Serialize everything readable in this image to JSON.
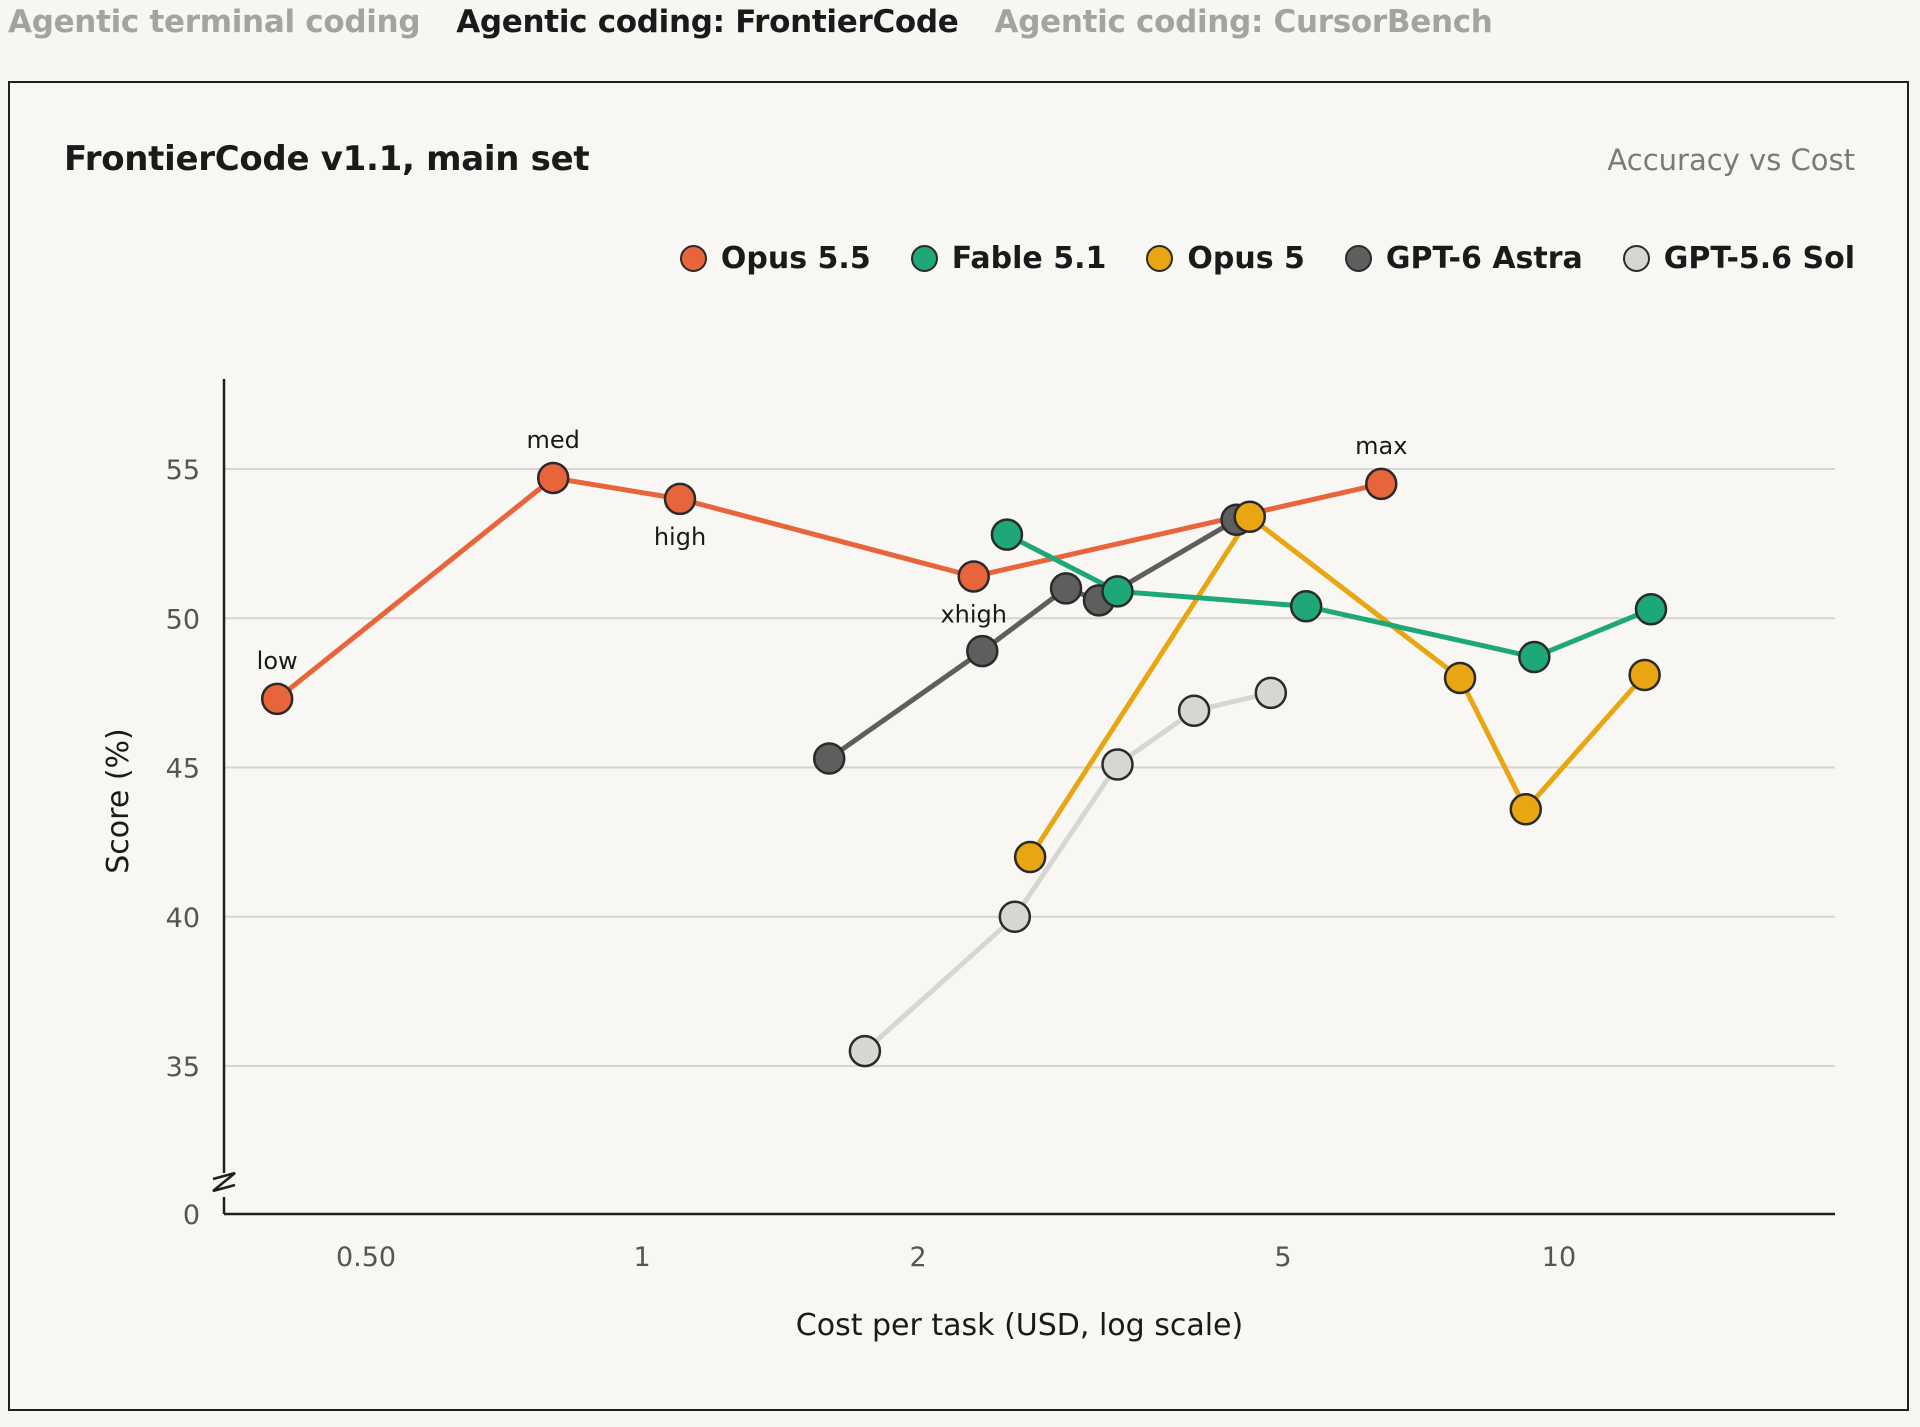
{
  "tabs": [
    {
      "label": "Agentic terminal coding",
      "active": false
    },
    {
      "label": "Agentic coding: FrontierCode",
      "active": true
    },
    {
      "label": "Agentic coding: CursorBench",
      "active": false
    }
  ],
  "panel": {
    "title": "FrontierCode v1.1, main set",
    "subtitle": "Accuracy vs Cost"
  },
  "chart_data": {
    "type": "line",
    "title": "FrontierCode v1.1, main set",
    "subtitle": "Accuracy vs Cost",
    "xlabel": "Cost per task (USD, log scale)",
    "ylabel": "Score (%)",
    "x_scale": "log",
    "xlim": [
      0.35,
      20
    ],
    "x_ticks": [
      {
        "value": 0.5,
        "label": "0.50"
      },
      {
        "value": 1,
        "label": "1"
      },
      {
        "value": 2,
        "label": "2"
      },
      {
        "value": 5,
        "label": "5"
      },
      {
        "value": 10,
        "label": "10"
      }
    ],
    "y_axis_break": true,
    "ylim": [
      33,
      58
    ],
    "y_ticks": [
      {
        "value": 35,
        "label": "35"
      },
      {
        "value": 40,
        "label": "40"
      },
      {
        "value": 45,
        "label": "45"
      },
      {
        "value": 50,
        "label": "50"
      },
      {
        "value": 55,
        "label": "55"
      }
    ],
    "y_zero_label": "0",
    "grid": "horizontal",
    "legend_position": "top-right",
    "series": [
      {
        "name": "Opus 5.5",
        "color": "#e8643a",
        "points": [
          {
            "x": 0.4,
            "y": 47.3,
            "label": "low"
          },
          {
            "x": 0.8,
            "y": 54.7,
            "label": "med"
          },
          {
            "x": 1.1,
            "y": 54.0,
            "label": "high"
          },
          {
            "x": 2.3,
            "y": 51.4,
            "label": "xhigh"
          },
          {
            "x": 6.4,
            "y": 54.5,
            "label": "max"
          }
        ]
      },
      {
        "name": "Fable 5.1",
        "color": "#1ea878",
        "points": [
          {
            "x": 2.5,
            "y": 52.8
          },
          {
            "x": 3.3,
            "y": 50.9
          },
          {
            "x": 5.3,
            "y": 50.4
          },
          {
            "x": 9.4,
            "y": 48.7
          },
          {
            "x": 12.6,
            "y": 50.3
          }
        ]
      },
      {
        "name": "Opus 5",
        "color": "#e8a712",
        "points": [
          {
            "x": 2.65,
            "y": 42.0
          },
          {
            "x": 4.6,
            "y": 53.4
          },
          {
            "x": 7.8,
            "y": 48.0
          },
          {
            "x": 9.2,
            "y": 43.6
          },
          {
            "x": 12.4,
            "y": 48.1
          }
        ]
      },
      {
        "name": "GPT-6 Astra",
        "color": "#5e5e5e",
        "points": [
          {
            "x": 1.6,
            "y": 45.3
          },
          {
            "x": 2.35,
            "y": 48.9
          },
          {
            "x": 2.9,
            "y": 51.0
          },
          {
            "x": 3.15,
            "y": 50.6
          },
          {
            "x": 4.45,
            "y": 53.3
          }
        ]
      },
      {
        "name": "GPT-5.6 Sol",
        "color": "#d7d6d0",
        "points": [
          {
            "x": 1.75,
            "y": 35.5
          },
          {
            "x": 2.55,
            "y": 40.0
          },
          {
            "x": 3.3,
            "y": 45.1
          },
          {
            "x": 4.0,
            "y": 46.9
          },
          {
            "x": 4.85,
            "y": 47.5
          }
        ]
      }
    ]
  }
}
